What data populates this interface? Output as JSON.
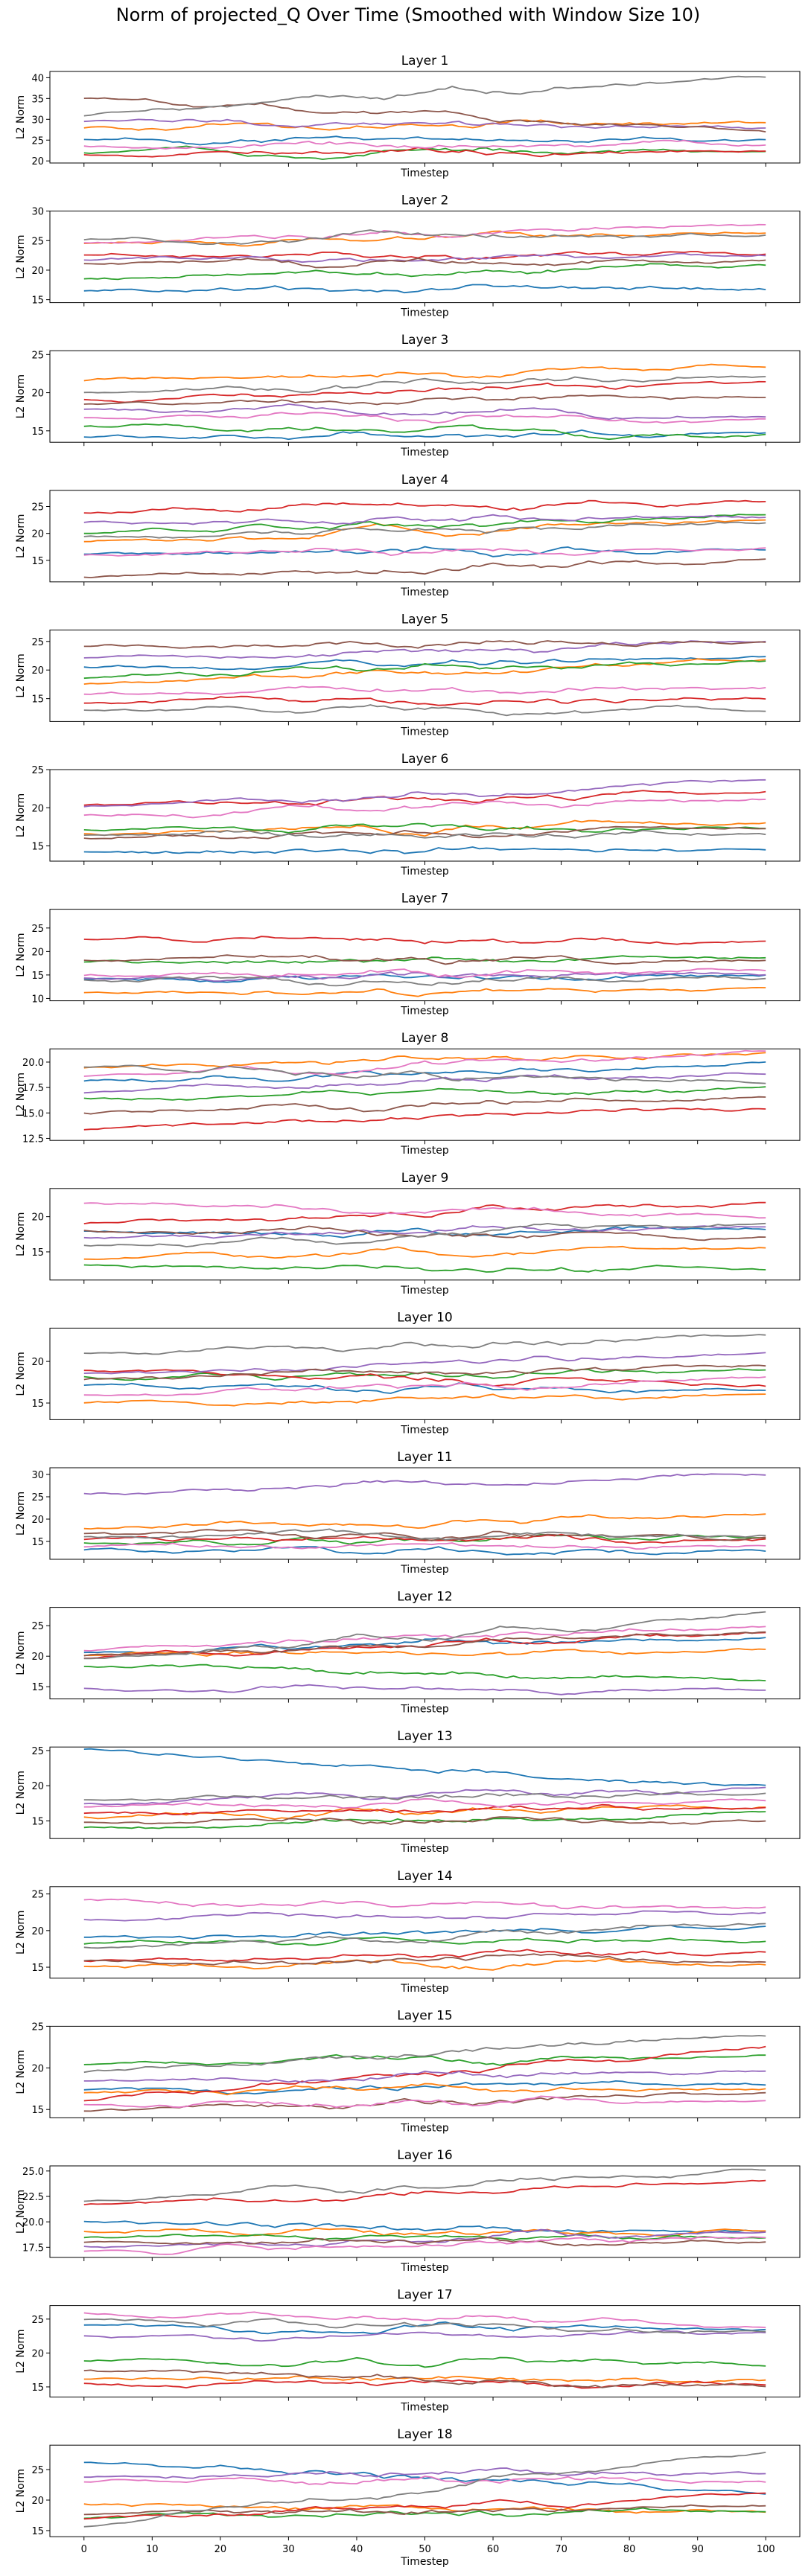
{
  "figure": {
    "title": "Norm of projected_Q Over Time (Smoothed with Window Size 10)",
    "x_axis_label": "Timestep",
    "y_axis_label": "L2 Norm"
  },
  "chart_data": {
    "type": "line",
    "x_range": [
      0,
      100
    ],
    "x_ticks": [
      0,
      10,
      20,
      30,
      40,
      50,
      60,
      70,
      80,
      90,
      100
    ],
    "shared_x": true,
    "grid": false,
    "series_colors": [
      "#1f77b4",
      "#ff7f0e",
      "#2ca02c",
      "#d62728",
      "#9467bd",
      "#8c564b",
      "#e377c2",
      "#7f7f7f"
    ],
    "panels": [
      {
        "title": "Layer 1",
        "ylim": [
          19.5,
          41.5
        ],
        "yticks": [
          20,
          25,
          30,
          35,
          40
        ],
        "ytick_labels": [
          "20",
          "25",
          "30",
          "35",
          "40"
        ],
        "ylabel": "L2 Norm",
        "series": [
          {
            "start": 25,
            "end": 25
          },
          {
            "start": 28,
            "end": 29
          },
          {
            "start": 22.5,
            "end": 22.5
          },
          {
            "start": 21.5,
            "end": 22
          },
          {
            "start": 30,
            "end": 28
          },
          {
            "start": 35,
            "end": 27
          },
          {
            "start": 23.5,
            "end": 24
          },
          {
            "start": 31,
            "end": 40
          }
        ]
      },
      {
        "title": "Layer 2",
        "ylim": [
          14.5,
          30
        ],
        "yticks": [
          15,
          20,
          25,
          30
        ],
        "ytick_labels": [
          "15",
          "20",
          "25",
          "30"
        ],
        "ylabel": "L2 Norm",
        "series": [
          {
            "start": 16.5,
            "end": 16.8
          },
          {
            "start": 24.5,
            "end": 26.5
          },
          {
            "start": 18.5,
            "end": 21
          },
          {
            "start": 22.5,
            "end": 23
          },
          {
            "start": 22,
            "end": 22.5
          },
          {
            "start": 21,
            "end": 21.5
          },
          {
            "start": 24.5,
            "end": 28
          },
          {
            "start": 25,
            "end": 26
          }
        ]
      },
      {
        "title": "Layer 3",
        "ylim": [
          13.5,
          25.5
        ],
        "yticks": [
          15,
          20,
          25
        ],
        "ytick_labels": [
          "15",
          "20",
          "25"
        ],
        "ylabel": "L2 Norm",
        "series": [
          {
            "start": 14,
            "end": 14.8
          },
          {
            "start": 21.5,
            "end": 23.5
          },
          {
            "start": 15.5,
            "end": 14.5
          },
          {
            "start": 19,
            "end": 21.5
          },
          {
            "start": 18,
            "end": 17
          },
          {
            "start": 18.5,
            "end": 19.5
          },
          {
            "start": 17,
            "end": 16.5
          },
          {
            "start": 20,
            "end": 22
          }
        ]
      },
      {
        "title": "Layer 4",
        "ylim": [
          11,
          28
        ],
        "yticks": [
          15,
          20,
          25
        ],
        "ytick_labels": [
          "15",
          "20",
          "25"
        ],
        "ylabel": "L2 Norm",
        "series": [
          {
            "start": 16,
            "end": 17
          },
          {
            "start": 18.5,
            "end": 22.5
          },
          {
            "start": 20,
            "end": 23
          },
          {
            "start": 24,
            "end": 26
          },
          {
            "start": 22,
            "end": 23
          },
          {
            "start": 12,
            "end": 15
          },
          {
            "start": 16.5,
            "end": 17
          },
          {
            "start": 19.5,
            "end": 22
          }
        ]
      },
      {
        "title": "Layer 5",
        "ylim": [
          11,
          27
        ],
        "yticks": [
          15,
          20,
          25
        ],
        "ytick_labels": [
          "15",
          "20",
          "25"
        ],
        "ylabel": "L2 Norm",
        "series": [
          {
            "start": 20.5,
            "end": 22
          },
          {
            "start": 17.5,
            "end": 22
          },
          {
            "start": 18.5,
            "end": 21.5
          },
          {
            "start": 14.5,
            "end": 15
          },
          {
            "start": 22,
            "end": 25
          },
          {
            "start": 24,
            "end": 25
          },
          {
            "start": 16,
            "end": 17
          },
          {
            "start": 13,
            "end": 13
          }
        ]
      },
      {
        "title": "Layer 6",
        "ylim": [
          13,
          25
        ],
        "yticks": [
          15,
          20,
          25
        ],
        "ytick_labels": [
          "15",
          "20",
          "25"
        ],
        "ylabel": "L2 Norm",
        "series": [
          {
            "start": 14,
            "end": 14.5
          },
          {
            "start": 16.5,
            "end": 18
          },
          {
            "start": 17,
            "end": 17.5
          },
          {
            "start": 20.5,
            "end": 22
          },
          {
            "start": 20,
            "end": 23.5
          },
          {
            "start": 16,
            "end": 17.5
          },
          {
            "start": 19,
            "end": 21
          },
          {
            "start": 16.5,
            "end": 16.5
          }
        ]
      },
      {
        "title": "Layer 7",
        "ylim": [
          9.5,
          29
        ],
        "yticks": [
          10,
          15,
          20,
          25
        ],
        "ytick_labels": [
          "10",
          "15",
          "20",
          "25"
        ],
        "ylabel": "L2 Norm",
        "series": [
          {
            "start": 14,
            "end": 15
          },
          {
            "start": 11,
            "end": 12
          },
          {
            "start": 17.5,
            "end": 19
          },
          {
            "start": 23,
            "end": 22
          },
          {
            "start": 14.5,
            "end": 15
          },
          {
            "start": 18.5,
            "end": 18
          },
          {
            "start": 15,
            "end": 16
          },
          {
            "start": 14,
            "end": 14
          }
        ]
      },
      {
        "title": "Layer 8",
        "ylim": [
          12.3,
          21.3
        ],
        "yticks": [
          12.5,
          15.0,
          17.5,
          20.0
        ],
        "ytick_labels": [
          "12.5",
          "15.0",
          "17.5",
          "20.0"
        ],
        "ylabel": "L2 Norm",
        "series": [
          {
            "start": 18,
            "end": 20
          },
          {
            "start": 19.5,
            "end": 21
          },
          {
            "start": 16.5,
            "end": 17.5
          },
          {
            "start": 13.5,
            "end": 15.5
          },
          {
            "start": 17,
            "end": 19
          },
          {
            "start": 15,
            "end": 16.5
          },
          {
            "start": 18.5,
            "end": 21
          },
          {
            "start": 19.5,
            "end": 18
          }
        ]
      },
      {
        "title": "Layer 9",
        "ylim": [
          11,
          24
        ],
        "yticks": [
          15,
          20
        ],
        "ytick_labels": [
          "15",
          "20"
        ],
        "ylabel": "L2 Norm",
        "series": [
          {
            "start": 18,
            "end": 18
          },
          {
            "start": 14,
            "end": 15.5
          },
          {
            "start": 13,
            "end": 12.5
          },
          {
            "start": 19,
            "end": 22
          },
          {
            "start": 17,
            "end": 18.5
          },
          {
            "start": 18,
            "end": 17
          },
          {
            "start": 22,
            "end": 20
          },
          {
            "start": 16,
            "end": 19
          }
        ]
      },
      {
        "title": "Layer 10",
        "ylim": [
          13,
          24
        ],
        "yticks": [
          15,
          20
        ],
        "ytick_labels": [
          "15",
          "20"
        ],
        "ylabel": "L2 Norm",
        "series": [
          {
            "start": 17,
            "end": 16.5
          },
          {
            "start": 15,
            "end": 16
          },
          {
            "start": 18,
            "end": 19
          },
          {
            "start": 19,
            "end": 17
          },
          {
            "start": 18.5,
            "end": 21
          },
          {
            "start": 18,
            "end": 19.5
          },
          {
            "start": 16,
            "end": 18
          },
          {
            "start": 21,
            "end": 23
          }
        ]
      },
      {
        "title": "Layer 11",
        "ylim": [
          11,
          31.5
        ],
        "yticks": [
          15,
          20,
          25,
          30
        ],
        "ytick_labels": [
          "15",
          "20",
          "25",
          "30"
        ],
        "ylabel": "L2 Norm",
        "series": [
          {
            "start": 13,
            "end": 13
          },
          {
            "start": 18,
            "end": 21
          },
          {
            "start": 14.5,
            "end": 16
          },
          {
            "start": 15.5,
            "end": 15.5
          },
          {
            "start": 26,
            "end": 30
          },
          {
            "start": 17,
            "end": 16
          },
          {
            "start": 14,
            "end": 14
          },
          {
            "start": 16,
            "end": 16.5
          }
        ]
      },
      {
        "title": "Layer 12",
        "ylim": [
          13,
          28
        ],
        "yticks": [
          15,
          20,
          25
        ],
        "ytick_labels": [
          "15",
          "20",
          "25"
        ],
        "ylabel": "L2 Norm",
        "series": [
          {
            "start": 21,
            "end": 23
          },
          {
            "start": 20.5,
            "end": 21
          },
          {
            "start": 18.5,
            "end": 16
          },
          {
            "start": 20,
            "end": 24
          },
          {
            "start": 14.5,
            "end": 14.5
          },
          {
            "start": 20,
            "end": 24
          },
          {
            "start": 21,
            "end": 25
          },
          {
            "start": 19.5,
            "end": 27
          }
        ]
      },
      {
        "title": "Layer 13",
        "ylim": [
          12.5,
          25.5
        ],
        "yticks": [
          15,
          20,
          25
        ],
        "ytick_labels": [
          "15",
          "20",
          "25"
        ],
        "ylabel": "L2 Norm",
        "series": [
          {
            "start": 25,
            "end": 20
          },
          {
            "start": 15.5,
            "end": 17
          },
          {
            "start": 14,
            "end": 16
          },
          {
            "start": 16,
            "end": 17
          },
          {
            "start": 17.5,
            "end": 19.5
          },
          {
            "start": 15,
            "end": 15
          },
          {
            "start": 17,
            "end": 18
          },
          {
            "start": 18,
            "end": 19
          }
        ]
      },
      {
        "title": "Layer 14",
        "ylim": [
          13.5,
          26
        ],
        "yticks": [
          15,
          20,
          25
        ],
        "ytick_labels": [
          "15",
          "20",
          "25"
        ],
        "ylabel": "L2 Norm",
        "series": [
          {
            "start": 19,
            "end": 20.5
          },
          {
            "start": 15,
            "end": 15.5
          },
          {
            "start": 18.5,
            "end": 18.5
          },
          {
            "start": 16,
            "end": 17
          },
          {
            "start": 21.5,
            "end": 22.5
          },
          {
            "start": 16,
            "end": 16
          },
          {
            "start": 24,
            "end": 23
          },
          {
            "start": 17.5,
            "end": 21
          }
        ]
      },
      {
        "title": "Layer 15",
        "ylim": [
          14,
          25
        ],
        "yticks": [
          15,
          20,
          25
        ],
        "ytick_labels": [
          "15",
          "20",
          "25"
        ],
        "ylabel": "L2 Norm",
        "series": [
          {
            "start": 17.5,
            "end": 18
          },
          {
            "start": 17,
            "end": 17.5
          },
          {
            "start": 20.5,
            "end": 21.5
          },
          {
            "start": 16,
            "end": 22.5
          },
          {
            "start": 18.5,
            "end": 19.5
          },
          {
            "start": 15,
            "end": 17
          },
          {
            "start": 15.5,
            "end": 16
          },
          {
            "start": 19.5,
            "end": 24
          }
        ]
      },
      {
        "title": "Layer 16",
        "ylim": [
          16.5,
          25.5
        ],
        "yticks": [
          17.5,
          20.0,
          22.5,
          25.0
        ],
        "ytick_labels": [
          "17.5",
          "20.0",
          "22.5",
          "25.0"
        ],
        "ylabel": "L2 Norm",
        "series": [
          {
            "start": 20,
            "end": 19
          },
          {
            "start": 19,
            "end": 19
          },
          {
            "start": 18.5,
            "end": 18.5
          },
          {
            "start": 21.5,
            "end": 24
          },
          {
            "start": 17.5,
            "end": 19
          },
          {
            "start": 18,
            "end": 18
          },
          {
            "start": 17,
            "end": 18.5
          },
          {
            "start": 22,
            "end": 25
          }
        ]
      },
      {
        "title": "Layer 17",
        "ylim": [
          13.5,
          27
        ],
        "yticks": [
          15,
          20,
          25
        ],
        "ytick_labels": [
          "15",
          "20",
          "25"
        ],
        "ylabel": "L2 Norm",
        "series": [
          {
            "start": 24,
            "end": 23.5
          },
          {
            "start": 16,
            "end": 16
          },
          {
            "start": 19,
            "end": 18.5
          },
          {
            "start": 15.5,
            "end": 15.5
          },
          {
            "start": 22.5,
            "end": 23
          },
          {
            "start": 17.5,
            "end": 15
          },
          {
            "start": 26,
            "end": 24
          },
          {
            "start": 25,
            "end": 23
          }
        ]
      },
      {
        "title": "Layer 18",
        "ylim": [
          14,
          29
        ],
        "yticks": [
          15,
          20,
          25
        ],
        "ytick_labels": [
          "15",
          "20",
          "25"
        ],
        "ylabel": "L2 Norm",
        "series": [
          {
            "start": 26.5,
            "end": 21
          },
          {
            "start": 19.5,
            "end": 18
          },
          {
            "start": 17.5,
            "end": 18
          },
          {
            "start": 17,
            "end": 21
          },
          {
            "start": 24,
            "end": 24.5
          },
          {
            "start": 17.5,
            "end": 19
          },
          {
            "start": 23,
            "end": 23
          },
          {
            "start": 16,
            "end": 28
          }
        ]
      }
    ]
  }
}
